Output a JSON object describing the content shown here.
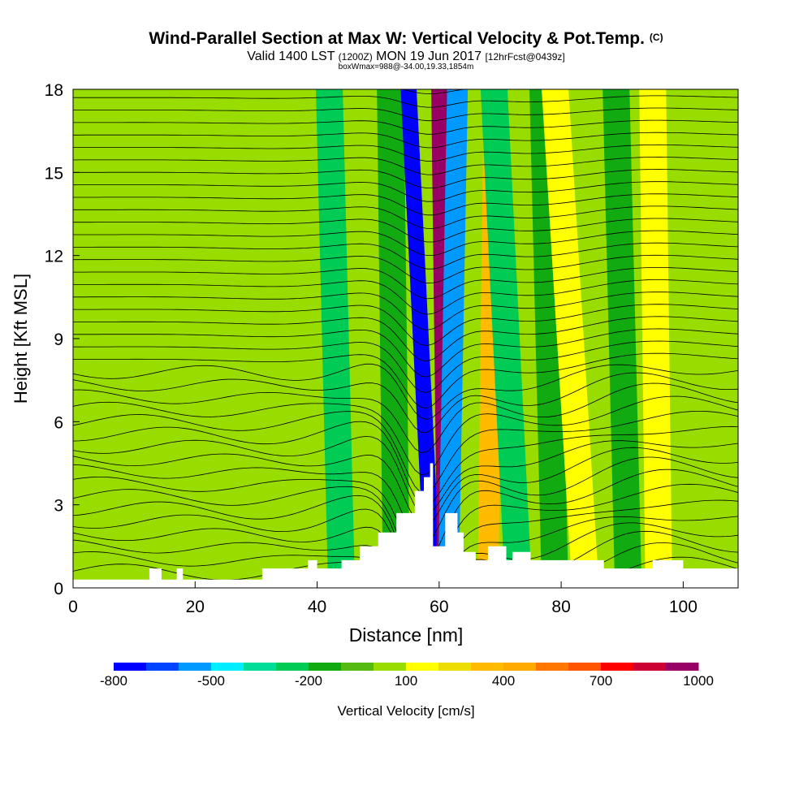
{
  "header": {
    "title": "Wind-Parallel Section at Max W: Vertical Velocity & Pot.Temp.",
    "copyright": "(C)",
    "subtitle_prefix": "Valid 1400 LST",
    "subtitle_utc": "(1200Z)",
    "subtitle_date": "MON 19 Jun 2017",
    "subtitle_forecast": "[12hrFcst@0439z]",
    "box_info": "boxWmax=988@-34.00,19.33,1854m"
  },
  "chart_data": {
    "type": "heatmap",
    "title": "Wind-Parallel Section at Max W: Vertical Velocity & Pot.Temp.",
    "xlabel": "Distance [nm]",
    "ylabel": "Height [Kft MSL]",
    "xlim": [
      0,
      109
    ],
    "ylim": [
      0,
      18
    ],
    "x_ticks": [
      0,
      20,
      40,
      60,
      80,
      100
    ],
    "y_ticks": [
      0,
      3,
      6,
      9,
      12,
      15,
      18
    ],
    "colorbar": {
      "label": "Vertical Velocity [cm/s]",
      "tick_labels": [
        "-800",
        "-500",
        "-200",
        "100",
        "400",
        "700",
        "1000"
      ],
      "tick_values": [
        -800,
        -500,
        -200,
        100,
        400,
        700,
        1000
      ],
      "bins": [
        -800,
        -700,
        -600,
        -500,
        -400,
        -300,
        -200,
        -100,
        0,
        100,
        200,
        300,
        400,
        500,
        600,
        700,
        800,
        900,
        1000
      ],
      "colors": [
        "#0000ff",
        "#0044ff",
        "#0099ff",
        "#00eeff",
        "#00dd99",
        "#00cc55",
        "#11aa11",
        "#55bb11",
        "#99dd00",
        "#ffff00",
        "#eedd00",
        "#ffbb00",
        "#ffaa00",
        "#ff7700",
        "#ff5500",
        "#ff0000",
        "#cc0033",
        "#990066"
      ]
    },
    "max_vertical_velocity_cm_s": 988,
    "max_location": "-34.00,19.33,1854m",
    "wave_bands": [
      {
        "x_bottom": 44,
        "x_top": 42,
        "w": -220
      },
      {
        "x_bottom": 53,
        "x_top": 52,
        "w": -150
      },
      {
        "x_bottom": 59,
        "x_top": 55,
        "w": -750
      },
      {
        "x_bottom": 61,
        "x_top": 60,
        "w": 950
      },
      {
        "x_bottom": 61.5,
        "x_top": 63,
        "w": -520
      },
      {
        "x_bottom": 68,
        "x_top": 69,
        "w": 380
      },
      {
        "x_bottom": 73,
        "x_top": 69,
        "w": -300
      },
      {
        "x_bottom": 79,
        "x_top": 77,
        "w": -150
      },
      {
        "x_bottom": 84,
        "x_top": 79,
        "w": 150
      },
      {
        "x_bottom": 91,
        "x_top": 89,
        "w": -150
      },
      {
        "x_bottom": 96,
        "x_top": 95,
        "w": 150
      }
    ],
    "terrain_profile": {
      "x": [
        0,
        12,
        12.5,
        13.5,
        14.5,
        17,
        18,
        22,
        31,
        35,
        38.5,
        40,
        44,
        47,
        50,
        53,
        56,
        57.5,
        58.5,
        59,
        59.5,
        61,
        62,
        63,
        64,
        66,
        68,
        70,
        71,
        72,
        75,
        82,
        86,
        87,
        95,
        100,
        109
      ],
      "height": [
        0.3,
        0.3,
        0.7,
        0.7,
        0.3,
        0.7,
        0.3,
        0.3,
        0.7,
        0.7,
        1.0,
        0.7,
        1.0,
        1.5,
        2.0,
        2.7,
        3.5,
        4.0,
        4.5,
        1.5,
        1.5,
        2.7,
        2.7,
        2.0,
        1.3,
        1.0,
        1.5,
        1.5,
        1.0,
        1.3,
        1.0,
        1.0,
        1.0,
        0.7,
        1.0,
        0.7,
        0.7
      ]
    },
    "isentropes_count": 40
  }
}
